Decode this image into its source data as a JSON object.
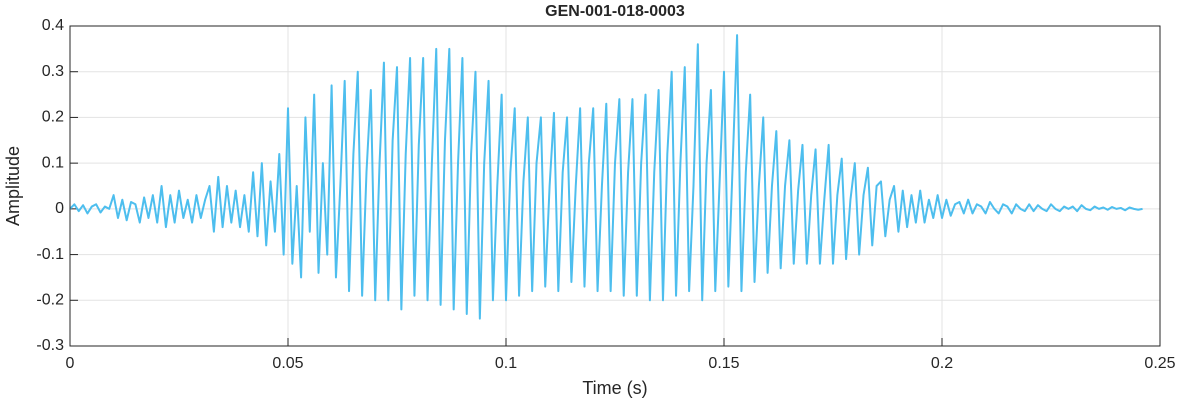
{
  "chart_data": {
    "type": "line",
    "title": "GEN-001-018-0003",
    "xlabel": "Time (s)",
    "ylabel": "Amplitude",
    "color": "#4dbeee",
    "grid": true,
    "xlim": [
      0,
      0.25
    ],
    "xticks": [
      0,
      0.05,
      0.1,
      0.15,
      0.2,
      0.25
    ],
    "ylim": [
      -0.3,
      0.4
    ],
    "yticks": [
      -0.3,
      -0.2,
      -0.1,
      0,
      0.1,
      0.2,
      0.3,
      0.4
    ],
    "x": [
      0,
      0.001,
      0.002,
      0.003,
      0.004,
      0.005,
      0.006,
      0.007,
      0.008,
      0.009,
      0.01,
      0.011,
      0.012,
      0.013,
      0.014,
      0.015,
      0.016,
      0.017,
      0.018,
      0.019,
      0.02,
      0.021,
      0.022,
      0.023,
      0.024,
      0.025,
      0.026,
      0.027,
      0.028,
      0.029,
      0.03,
      0.031,
      0.032,
      0.033,
      0.034,
      0.035,
      0.036,
      0.037,
      0.038,
      0.039,
      0.04,
      0.041,
      0.042,
      0.043,
      0.044,
      0.045,
      0.046,
      0.047,
      0.048,
      0.049,
      0.05,
      0.051,
      0.052,
      0.053,
      0.054,
      0.055,
      0.056,
      0.057,
      0.058,
      0.059,
      0.06,
      0.061,
      0.062,
      0.063,
      0.064,
      0.065,
      0.066,
      0.067,
      0.068,
      0.069,
      0.07,
      0.071,
      0.072,
      0.073,
      0.074,
      0.075,
      0.076,
      0.077,
      0.078,
      0.079,
      0.08,
      0.081,
      0.082,
      0.083,
      0.084,
      0.085,
      0.086,
      0.087,
      0.088,
      0.089,
      0.09,
      0.091,
      0.092,
      0.093,
      0.094,
      0.095,
      0.096,
      0.097,
      0.098,
      0.099,
      0.1,
      0.101,
      0.102,
      0.103,
      0.104,
      0.105,
      0.106,
      0.107,
      0.108,
      0.109,
      0.11,
      0.111,
      0.112,
      0.113,
      0.114,
      0.115,
      0.116,
      0.117,
      0.118,
      0.119,
      0.12,
      0.121,
      0.122,
      0.123,
      0.124,
      0.125,
      0.126,
      0.127,
      0.128,
      0.129,
      0.13,
      0.131,
      0.132,
      0.133,
      0.134,
      0.135,
      0.136,
      0.137,
      0.138,
      0.139,
      0.14,
      0.141,
      0.142,
      0.143,
      0.144,
      0.145,
      0.146,
      0.147,
      0.148,
      0.149,
      0.15,
      0.151,
      0.152,
      0.153,
      0.154,
      0.155,
      0.156,
      0.157,
      0.158,
      0.159,
      0.16,
      0.161,
      0.162,
      0.163,
      0.164,
      0.165,
      0.166,
      0.167,
      0.168,
      0.169,
      0.17,
      0.171,
      0.172,
      0.173,
      0.174,
      0.175,
      0.176,
      0.177,
      0.178,
      0.179,
      0.18,
      0.181,
      0.182,
      0.183,
      0.184,
      0.185,
      0.186,
      0.187,
      0.188,
      0.189,
      0.19,
      0.191,
      0.192,
      0.193,
      0.194,
      0.195,
      0.196,
      0.197,
      0.198,
      0.199,
      0.2,
      0.201,
      0.202,
      0.203,
      0.204,
      0.205,
      0.206,
      0.207,
      0.208,
      0.209,
      0.21,
      0.211,
      0.212,
      0.213,
      0.214,
      0.215,
      0.216,
      0.217,
      0.218,
      0.219,
      0.22,
      0.221,
      0.222,
      0.223,
      0.224,
      0.225,
      0.226,
      0.227,
      0.228,
      0.229,
      0.23,
      0.231,
      0.232,
      0.233,
      0.234,
      0.235,
      0.236,
      0.237,
      0.238,
      0.239,
      0.24,
      0.241,
      0.242,
      0.243,
      0.244,
      0.245,
      0.246
    ],
    "values": [
      0,
      0.01,
      -0.005,
      0.008,
      -0.01,
      0.005,
      0.01,
      -0.008,
      0.005,
      0,
      0.03,
      -0.02,
      0.02,
      -0.025,
      0.015,
      0.01,
      -0.03,
      0.025,
      -0.02,
      0.03,
      -0.03,
      0.05,
      -0.04,
      0.03,
      -0.03,
      0.04,
      -0.02,
      0.02,
      -0.03,
      0.03,
      -0.02,
      0.02,
      0.05,
      -0.05,
      0.07,
      -0.04,
      0.05,
      -0.03,
      0.04,
      -0.04,
      0.03,
      -0.05,
      0.08,
      -0.06,
      0.1,
      -0.08,
      0.06,
      -0.05,
      0.12,
      -0.1,
      0.22,
      -0.12,
      0.05,
      -0.15,
      0.2,
      -0.05,
      0.25,
      -0.14,
      0.1,
      -0.1,
      0.27,
      -0.15,
      0.05,
      0.28,
      -0.18,
      0.12,
      0.3,
      -0.19,
      0.08,
      0.26,
      -0.2,
      0.1,
      0.32,
      -0.2,
      0.15,
      0.31,
      -0.22,
      0.12,
      0.33,
      -0.19,
      0.14,
      0.33,
      -0.2,
      0.1,
      0.35,
      -0.21,
      0.15,
      0.35,
      -0.22,
      0.1,
      0.33,
      -0.23,
      0.12,
      0.3,
      -0.24,
      0.1,
      0.28,
      -0.2,
      0.05,
      0.25,
      -0.2,
      0.08,
      0.22,
      -0.19,
      0.06,
      0.2,
      -0.18,
      0.1,
      0.2,
      -0.17,
      0.05,
      0.21,
      -0.18,
      0.08,
      0.2,
      -0.16,
      0.05,
      0.22,
      -0.17,
      0.1,
      0.22,
      -0.18,
      0.05,
      0.23,
      -0.18,
      0.1,
      0.24,
      -0.19,
      0.08,
      0.24,
      -0.19,
      0.1,
      0.25,
      -0.2,
      0.08,
      0.26,
      -0.2,
      0.12,
      0.3,
      -0.19,
      0.1,
      0.31,
      -0.18,
      0.05,
      0.36,
      -0.2,
      0.1,
      0.26,
      -0.18,
      0.06,
      0.3,
      -0.17,
      0.1,
      0.38,
      -0.18,
      0.08,
      0.25,
      -0.16,
      0.05,
      0.2,
      -0.14,
      0.05,
      0.17,
      -0.13,
      0.05,
      0.15,
      -0.12,
      0.04,
      0.14,
      -0.12,
      0.03,
      0.13,
      -0.12,
      0.02,
      0.14,
      -0.12,
      0.03,
      0.11,
      -0.11,
      0.02,
      0.1,
      -0.1,
      0.03,
      0.09,
      -0.08,
      0.05,
      0.06,
      -0.06,
      0.02,
      0.05,
      -0.05,
      0.04,
      -0.04,
      0.03,
      -0.03,
      0.04,
      -0.03,
      0.02,
      -0.02,
      0.03,
      -0.02,
      0.02,
      -0.015,
      0.01,
      0.015,
      -0.01,
      0.02,
      -0.01,
      0.01,
      0.005,
      -0.01,
      0.015,
      0,
      -0.01,
      0.01,
      0.005,
      -0.01,
      0.01,
      0,
      -0.005,
      0.01,
      -0.005,
      0.008,
      0,
      -0.005,
      0.01,
      0,
      -0.005,
      0.005,
      0,
      0.005,
      -0.005,
      0.008,
      0,
      -0.003,
      0.005,
      0,
      0.003,
      -0.002,
      0.004,
      0,
      0.002,
      -0.003,
      0.003,
      0,
      -0.002,
      0
    ]
  }
}
